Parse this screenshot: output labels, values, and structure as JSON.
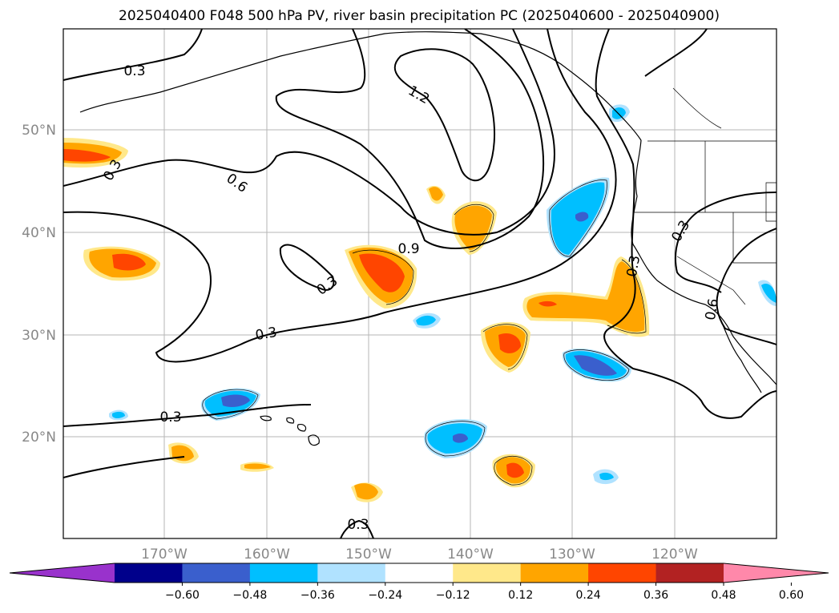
{
  "title": "2025040400 F048 500 hPa PV, river basin precipitation PC (2025040600 - 2025040900)",
  "lat_labels": [
    "50°N",
    "40°N",
    "30°N",
    "20°N"
  ],
  "lon_labels": [
    "170°W",
    "160°W",
    "150°W",
    "140°W",
    "130°W",
    "120°W"
  ],
  "contour_labels": [
    "0.3",
    "1.2",
    "0.3",
    "0.6",
    "0.9",
    "0.3",
    "0.3",
    "0.3",
    "0.3",
    "0.6",
    "0.3",
    "0.3"
  ],
  "colorbar": {
    "ticks": [
      "−0.60",
      "−0.48",
      "−0.36",
      "−0.24",
      "−0.12",
      "0.12",
      "0.24",
      "0.36",
      "0.48",
      "0.60"
    ],
    "colors": [
      "#9932CC",
      "#00008B",
      "#3A5FCD",
      "#00BFFF",
      "#B0E2FF",
      "#FFFFFF",
      "#FFE88A",
      "#FFA500",
      "#FF4500",
      "#B22222",
      "#FF88AA"
    ]
  }
}
